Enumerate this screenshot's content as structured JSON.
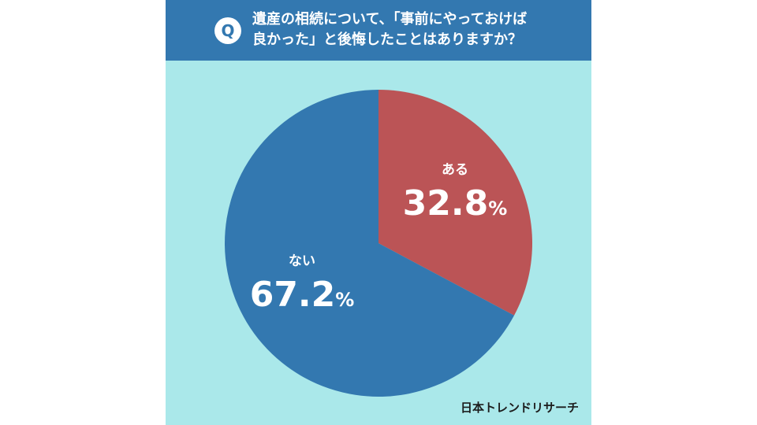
{
  "header": {
    "badge": "Q",
    "question_line1": "遺産の相続について、「事前にやっておけば",
    "question_line2": "良かった」と後悔したことはありますか？"
  },
  "brand": "日本トレンドリサーチ",
  "colors": {
    "background": "#aae8ea",
    "header": "#3378b0",
    "yes": "#bb5456",
    "no": "#3378b0"
  },
  "chart_data": {
    "type": "pie",
    "title": "遺産の相続について、「事前にやっておけば良かった」と後悔したことはありますか？",
    "slices": [
      {
        "label": "ある",
        "value": 32.8,
        "display": "32.8",
        "unit": "%",
        "color": "#bb5456"
      },
      {
        "label": "ない",
        "value": 67.2,
        "display": "67.2",
        "unit": "%",
        "color": "#3378b0"
      }
    ],
    "start": "12 o'clock",
    "direction": "clockwise"
  }
}
